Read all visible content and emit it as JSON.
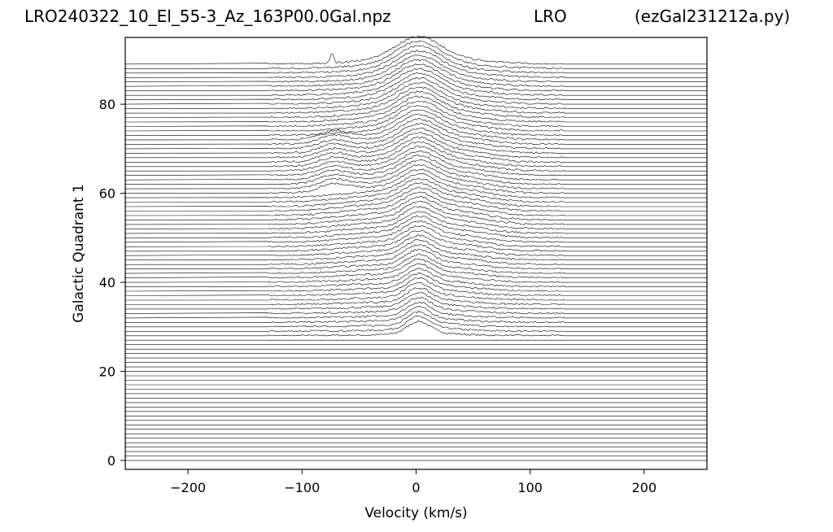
{
  "title": {
    "left": "LRO240322_10_El_55-3_Az_163P00.0Gal.npz",
    "center": "LRO",
    "right": "(ezGal231212a.py)"
  },
  "chart_data": {
    "type": "line",
    "style": "waterfall (stacked spectra, one trace per galactic longitude step)",
    "xlabel": "Velocity (km/s)",
    "ylabel": "Galactic Quadrant 1",
    "xlim": [
      -255,
      255
    ],
    "ylim": [
      -2,
      95
    ],
    "xticks": [
      -200,
      -100,
      0,
      100,
      200
    ],
    "xtick_labels": [
      "−200",
      "−100",
      "0",
      "100",
      "200"
    ],
    "yticks": [
      0,
      20,
      40,
      60,
      80
    ],
    "ytick_labels": [
      "0",
      "20",
      "40",
      "60",
      "80"
    ],
    "trace_count": 90,
    "trace_spacing": 1,
    "baseline_start": 0,
    "spectra_velocity_range": [
      -130,
      130
    ],
    "spectra_rows": [
      28,
      89
    ],
    "features": {
      "main_peak_velocity": 2,
      "high_longitude_spike": {
        "velocity": -74,
        "row": 89
      },
      "upper_hump": {
        "velocity": -73,
        "rows": [
          60,
          72
        ]
      }
    },
    "line_color": "#000000",
    "grid": false
  }
}
